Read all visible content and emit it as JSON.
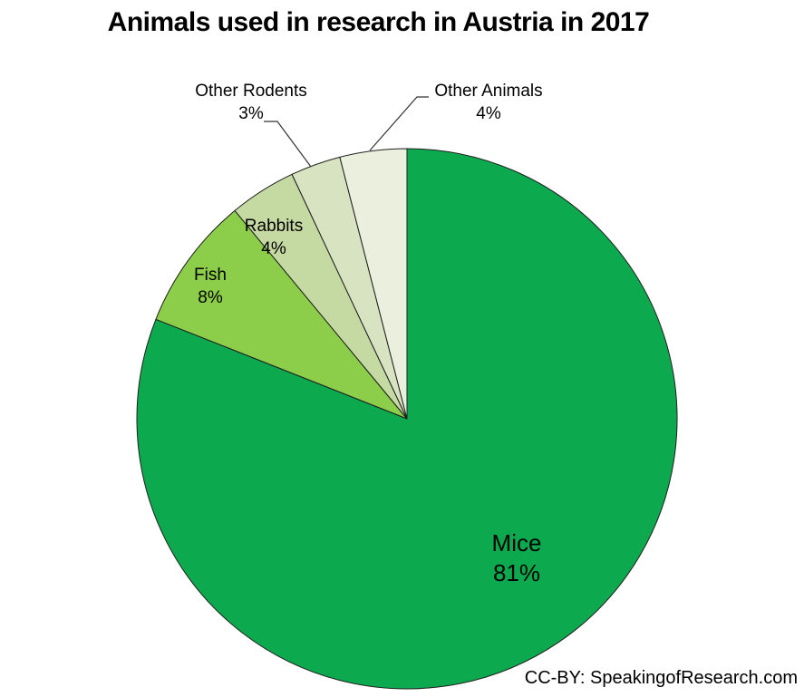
{
  "chart_data": {
    "type": "pie",
    "title": "Animals used in research in Austria in 2017",
    "categories": [
      "Mice",
      "Fish",
      "Rabbits",
      "Other Rodents",
      "Other Animals"
    ],
    "values": [
      81,
      8,
      4,
      3,
      4
    ],
    "percent_labels": [
      "81%",
      "8%",
      "4%",
      "3%",
      "4%"
    ],
    "colors": [
      "#0DA94F",
      "#8CCD4A",
      "#C5D9A2",
      "#D7E3C1",
      "#EBF0DE"
    ],
    "border_color": "#1F1F1F",
    "start_angle_deg": -90,
    "direction": "clockwise",
    "legend": "none"
  },
  "attribution": "CC-BY: SpeakingofResearch.com"
}
